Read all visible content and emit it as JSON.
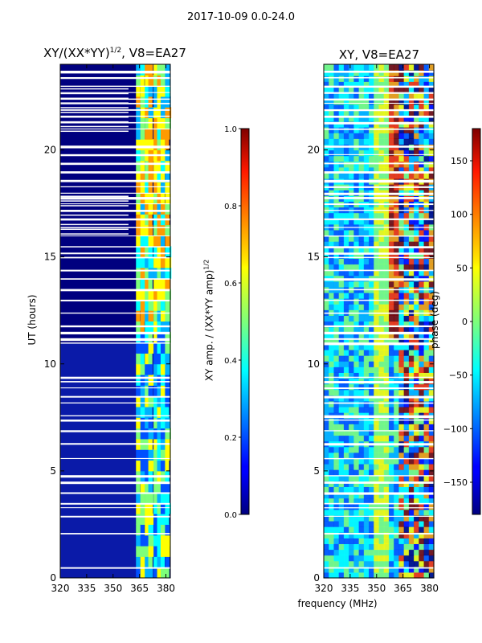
{
  "suptitle": "2017-10-09 0.0-24.0",
  "shared_xlabel": "frequency (MHz)",
  "chart_data": [
    {
      "type": "heatmap",
      "title": "XY/(XX*YY)^1/2, V8=EA27",
      "title_main": "XY/(XX*YY)",
      "title_sup": "1/2",
      "title_tail": ", V8=EA27",
      "xlabel": "",
      "ylabel": "UT (hours)",
      "xlim": [
        320,
        382.5
      ],
      "ylim": [
        0,
        24
      ],
      "xticks": [
        320,
        335,
        350,
        365,
        380
      ],
      "yticks": [
        0,
        5,
        10,
        15,
        20
      ],
      "colorbar": {
        "label": "XY amp. / (XX*YY amp)^1/2",
        "label_main": "XY amp. / (XX*YY amp)",
        "label_sup": "1/2",
        "range": [
          0.0,
          1.0
        ],
        "ticks": [
          0.0,
          0.2,
          0.4,
          0.6,
          0.8,
          1.0
        ],
        "tick_labels": [
          "0.0",
          "0.2",
          "0.4",
          "0.6",
          "0.8",
          "1.0"
        ],
        "colormap": "jet"
      }
    },
    {
      "type": "heatmap",
      "title": "XY, V8=EA27",
      "xlabel": "frequency (MHz)",
      "ylabel": "",
      "xlim": [
        320,
        382.5
      ],
      "ylim": [
        0,
        24
      ],
      "xticks": [
        320,
        335,
        350,
        365,
        380
      ],
      "yticks": [
        0,
        5,
        10,
        15,
        20
      ],
      "colorbar": {
        "label": "phase (deg)",
        "range": [
          -180,
          180
        ],
        "ticks": [
          -150,
          -100,
          -50,
          0,
          50,
          100,
          150
        ],
        "tick_labels": [
          "−150",
          "−100",
          "−50",
          "0",
          "50",
          "100",
          "150"
        ],
        "colormap": "jet"
      }
    }
  ]
}
